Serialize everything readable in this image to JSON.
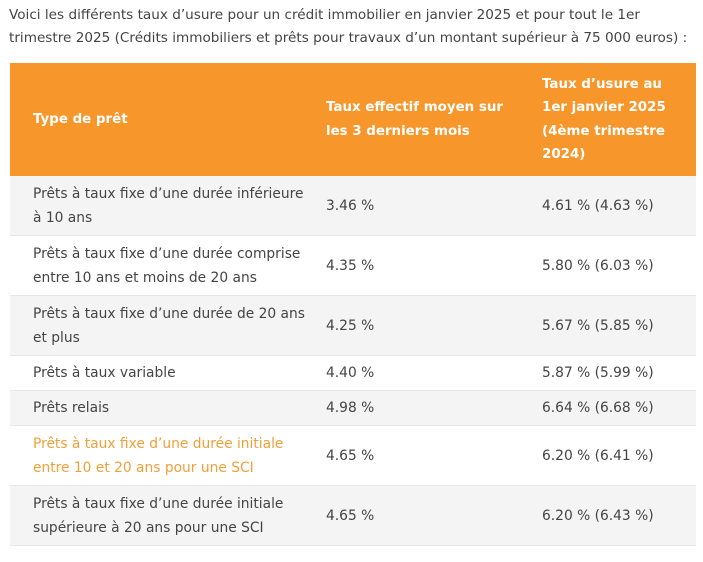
{
  "intro": "Voici les différents taux d’usure pour un crédit immobilier en janvier 2025 et pour tout le 1er trimestre 2025 (Crédits immobiliers et prêts pour travaux d’un montant supérieur à 75 000 euros) :",
  "table": {
    "headers": [
      "Type de prêt",
      "Taux effectif moyen sur les 3 derniers mois",
      "Taux d’usure au 1er janvier 2025 (4ème trimestre 2024)"
    ],
    "rows": [
      {
        "type": "Prêts à taux fixe d’une durée inférieure à 10 ans",
        "rate": "3.46 %",
        "usury": "4.61 % (4.63 %)"
      },
      {
        "type": "Prêts à taux fixe d’une durée comprise entre 10 ans et moins de 20 ans",
        "rate": "4.35 %",
        "usury": "5.80 % (6.03 %)"
      },
      {
        "type": "Prêts à taux fixe d’une durée de 20 ans et plus",
        "rate": "4.25 %",
        "usury": "5.67 % (5.85 %)"
      },
      {
        "type": "Prêts à taux variable",
        "rate": "4.40 %",
        "usury": "5.87 % (5.99 %)"
      },
      {
        "type": "Prêts relais",
        "rate": "4.98 %",
        "usury": "6.64 % (6.68 %)"
      },
      {
        "type": "Prêts à taux fixe d’une durée initiale entre 10 et 20 ans pour une SCI",
        "rate": "4.65 %",
        "usury": "6.20 % (6.41 %)"
      },
      {
        "type": "Prêts à taux fixe d’une durée initiale supérieure à 20 ans pour une SCI",
        "rate": "4.65 %",
        "usury": "6.20 % (6.43 %)"
      }
    ]
  },
  "colors": {
    "header_bg": "#f7962a",
    "highlight_text": "#f0a038",
    "row_stripe": "#f4f4f4"
  }
}
